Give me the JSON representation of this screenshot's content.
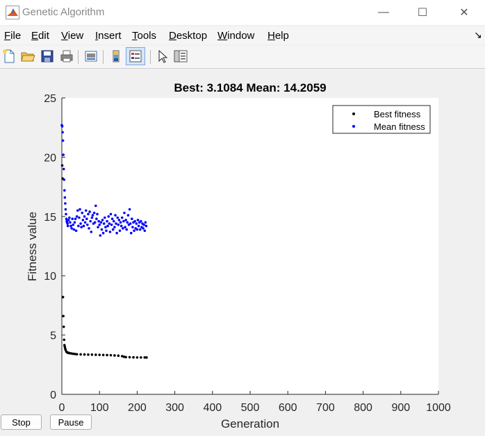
{
  "window": {
    "title": "Genetic Algorithm",
    "controls": {
      "minimize": "—",
      "maximize": "☐",
      "close": "✕"
    },
    "dock_glyph": "↘"
  },
  "menu": [
    {
      "accel": "F",
      "rest": "ile"
    },
    {
      "accel": "E",
      "rest": "dit"
    },
    {
      "accel": "V",
      "rest": "iew"
    },
    {
      "accel": "I",
      "rest": "nsert"
    },
    {
      "accel": "T",
      "rest": "ools"
    },
    {
      "accel": "D",
      "rest": "esktop"
    },
    {
      "accel": "W",
      "rest": "indow"
    },
    {
      "accel": "H",
      "rest": "elp"
    }
  ],
  "toolbar_icons": [
    "new-file-icon",
    "open-folder-icon",
    "save-icon",
    "print-icon",
    "print-preview-icon",
    "colorbar-icon",
    "legend-icon",
    "pointer-icon",
    "property-inspector-icon"
  ],
  "buttons": {
    "stop": "Stop",
    "pause": "Pause"
  },
  "chart_data": {
    "type": "scatter",
    "title": "Best: 3.1084 Mean: 14.2059",
    "xlabel": "Generation",
    "ylabel": "Fitness value",
    "xlim": [
      0,
      1000
    ],
    "ylim": [
      0,
      25
    ],
    "xticks": [
      "0",
      "100",
      "200",
      "300",
      "400",
      "500",
      "600",
      "700",
      "800",
      "900",
      "1000"
    ],
    "yticks": [
      "0",
      "5",
      "10",
      "15",
      "20",
      "25"
    ],
    "grid": false,
    "legend_position": "top-right",
    "series": [
      {
        "name": "Best fitness",
        "color": "#000000",
        "points": [
          [
            1,
            19.3
          ],
          [
            2,
            18.2
          ],
          [
            3,
            8.2
          ],
          [
            4,
            6.6
          ],
          [
            5,
            5.7
          ],
          [
            6,
            4.6
          ],
          [
            7,
            4.15
          ],
          [
            8,
            4.0
          ],
          [
            9,
            3.85
          ],
          [
            10,
            3.75
          ],
          [
            12,
            3.6
          ],
          [
            14,
            3.55
          ],
          [
            16,
            3.5
          ],
          [
            18,
            3.5
          ],
          [
            20,
            3.47
          ],
          [
            25,
            3.45
          ],
          [
            30,
            3.42
          ],
          [
            35,
            3.4
          ],
          [
            40,
            3.38
          ],
          [
            50,
            3.37
          ],
          [
            60,
            3.36
          ],
          [
            70,
            3.35
          ],
          [
            80,
            3.35
          ],
          [
            90,
            3.34
          ],
          [
            100,
            3.33
          ],
          [
            110,
            3.32
          ],
          [
            120,
            3.31
          ],
          [
            130,
            3.3
          ],
          [
            140,
            3.28
          ],
          [
            150,
            3.26
          ],
          [
            160,
            3.22
          ],
          [
            165,
            3.17
          ],
          [
            170,
            3.14
          ],
          [
            180,
            3.13
          ],
          [
            190,
            3.12
          ],
          [
            200,
            3.11
          ],
          [
            210,
            3.11
          ],
          [
            220,
            3.11
          ],
          [
            225,
            3.1084
          ]
        ]
      },
      {
        "name": "Mean fitness",
        "color": "#0000ff",
        "points": [
          [
            0,
            22.7
          ],
          [
            1,
            22.6
          ],
          [
            2,
            22.1
          ],
          [
            3,
            21.4
          ],
          [
            4,
            20.2
          ],
          [
            5,
            19.0
          ],
          [
            6,
            18.1
          ],
          [
            7,
            17.2
          ],
          [
            8,
            16.6
          ],
          [
            9,
            16.1
          ],
          [
            10,
            15.6
          ],
          [
            11,
            15.2
          ],
          [
            12,
            14.8
          ],
          [
            13,
            14.6
          ],
          [
            14,
            14.5
          ],
          [
            15,
            14.4
          ],
          [
            16,
            14.2
          ],
          [
            18,
            14.7
          ],
          [
            20,
            14.9
          ],
          [
            22,
            14.5
          ],
          [
            24,
            14.2
          ],
          [
            26,
            14.0
          ],
          [
            28,
            14.8
          ],
          [
            30,
            14.3
          ],
          [
            32,
            13.9
          ],
          [
            34,
            14.5
          ],
          [
            36,
            14.8
          ],
          [
            38,
            13.8
          ],
          [
            40,
            15.0
          ],
          [
            42,
            15.5
          ],
          [
            44,
            14.2
          ],
          [
            46,
            14.9
          ],
          [
            48,
            15.6
          ],
          [
            50,
            14.4
          ],
          [
            52,
            14.1
          ],
          [
            54,
            15.3
          ],
          [
            56,
            14.7
          ],
          [
            58,
            14.2
          ],
          [
            60,
            15.0
          ],
          [
            62,
            14.5
          ],
          [
            64,
            15.5
          ],
          [
            66,
            14.8
          ],
          [
            68,
            14.3
          ],
          [
            70,
            15.2
          ],
          [
            72,
            14.0
          ],
          [
            74,
            15.4
          ],
          [
            76,
            14.6
          ],
          [
            78,
            13.7
          ],
          [
            80,
            14.9
          ],
          [
            82,
            15.1
          ],
          [
            84,
            14.4
          ],
          [
            86,
            15.3
          ],
          [
            88,
            14.5
          ],
          [
            90,
            15.9
          ],
          [
            92,
            14.8
          ],
          [
            94,
            15.2
          ],
          [
            96,
            14.1
          ],
          [
            98,
            14.6
          ],
          [
            100,
            14.3
          ],
          [
            102,
            13.4
          ],
          [
            104,
            14.5
          ],
          [
            106,
            13.9
          ],
          [
            108,
            14.7
          ],
          [
            110,
            13.6
          ],
          [
            112,
            14.4
          ],
          [
            114,
            14.9
          ],
          [
            116,
            14.1
          ],
          [
            118,
            13.8
          ],
          [
            120,
            14.6
          ],
          [
            122,
            14.2
          ],
          [
            124,
            15.0
          ],
          [
            126,
            14.4
          ],
          [
            128,
            13.7
          ],
          [
            130,
            15.2
          ],
          [
            132,
            14.3
          ],
          [
            134,
            14.8
          ],
          [
            136,
            13.9
          ],
          [
            138,
            14.6
          ],
          [
            140,
            14.1
          ],
          [
            142,
            15.1
          ],
          [
            144,
            14.4
          ],
          [
            146,
            13.6
          ],
          [
            148,
            14.9
          ],
          [
            150,
            14.3
          ],
          [
            152,
            14.7
          ],
          [
            154,
            13.8
          ],
          [
            156,
            14.5
          ],
          [
            158,
            14.2
          ],
          [
            160,
            14.9
          ],
          [
            162,
            14.0
          ],
          [
            164,
            14.6
          ],
          [
            166,
            15.3
          ],
          [
            168,
            14.1
          ],
          [
            170,
            14.7
          ],
          [
            172,
            13.9
          ],
          [
            174,
            14.5
          ],
          [
            176,
            15.1
          ],
          [
            178,
            14.3
          ],
          [
            180,
            15.6
          ],
          [
            182,
            14.4
          ],
          [
            184,
            13.6
          ],
          [
            186,
            14.8
          ],
          [
            188,
            14.1
          ],
          [
            190,
            14.5
          ],
          [
            192,
            13.8
          ],
          [
            194,
            14.6
          ],
          [
            196,
            14.0
          ],
          [
            198,
            14.4
          ],
          [
            200,
            13.9
          ],
          [
            202,
            14.7
          ],
          [
            204,
            14.2
          ],
          [
            206,
            14.5
          ],
          [
            208,
            13.9
          ],
          [
            210,
            14.6
          ],
          [
            212,
            14.1
          ],
          [
            214,
            14.4
          ],
          [
            216,
            14.0
          ],
          [
            218,
            14.3
          ],
          [
            220,
            13.8
          ],
          [
            222,
            14.5
          ],
          [
            224,
            14.2
          ]
        ]
      }
    ]
  }
}
